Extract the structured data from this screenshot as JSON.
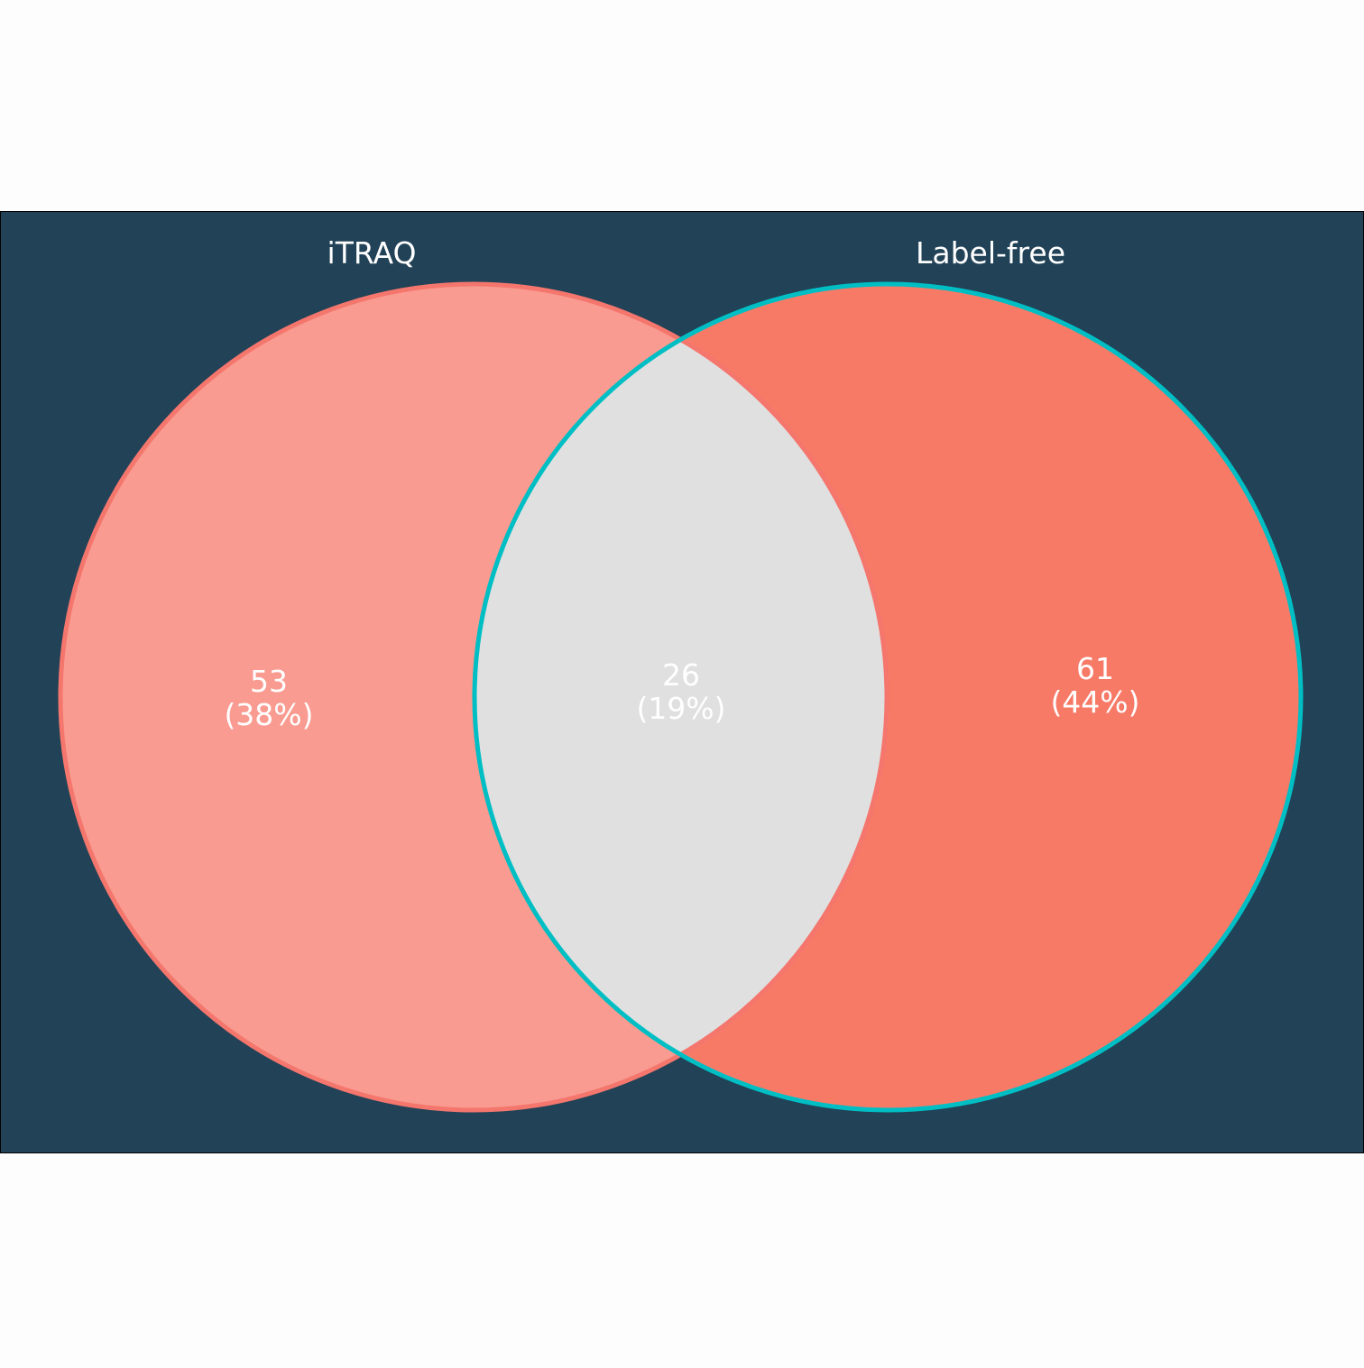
{
  "colors": {
    "page_background": "#fdfdfd",
    "panel_background": "#214257",
    "set_a_fill": "#f99b90",
    "set_b_fill": "#f77a67",
    "overlap_fill": "#e0e0e0",
    "set_a_stroke": "#f4766d",
    "set_b_stroke": "#00bfc4",
    "label_text": "#ffffff"
  },
  "sets": [
    {
      "name": "iTRAQ"
    },
    {
      "name": "Label-free"
    }
  ],
  "regions": {
    "a_only": {
      "count": "53",
      "percent": "(38%)"
    },
    "both": {
      "count": "26",
      "percent": "(19%)"
    },
    "b_only": {
      "count": "61",
      "percent": "(44%)"
    }
  }
}
